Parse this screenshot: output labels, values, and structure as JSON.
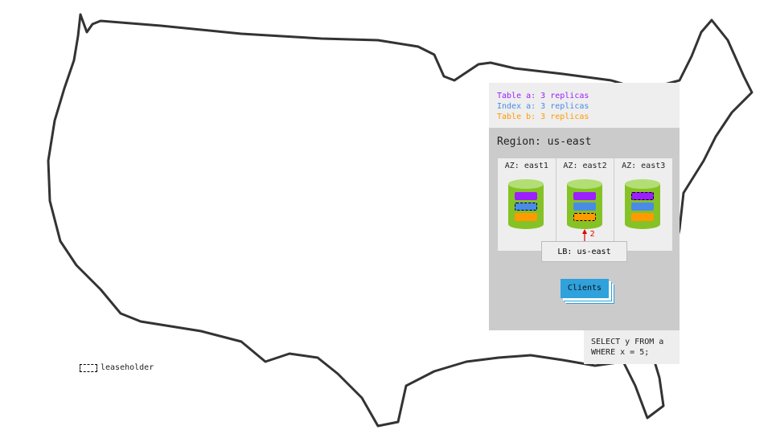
{
  "replicas": [
    {
      "label": "Table a: 3 replicas",
      "color": "#9b1fff"
    },
    {
      "label": "Index a: 3 replicas",
      "color": "#4a8be6"
    },
    {
      "label": "Table b: 3 replicas",
      "color": "#ff9a00"
    }
  ],
  "region": {
    "title": "Region: us-east"
  },
  "azs": [
    {
      "label": "AZ: east1",
      "leaseholder": "index-a"
    },
    {
      "label": "AZ: east2",
      "leaseholder": "table-b"
    },
    {
      "label": "AZ: east3",
      "leaseholder": "table-a"
    }
  ],
  "arrow_label": "2",
  "load_balancer": "LB: us-east",
  "clients": "Clients",
  "query": {
    "line1": "SELECT y FROM a",
    "line2": "WHERE x = 5;"
  },
  "legend": {
    "label": "leaseholder"
  },
  "colors": {
    "node": "#85c226",
    "clients": "#2fa1dc",
    "arrow": "#e00000"
  }
}
